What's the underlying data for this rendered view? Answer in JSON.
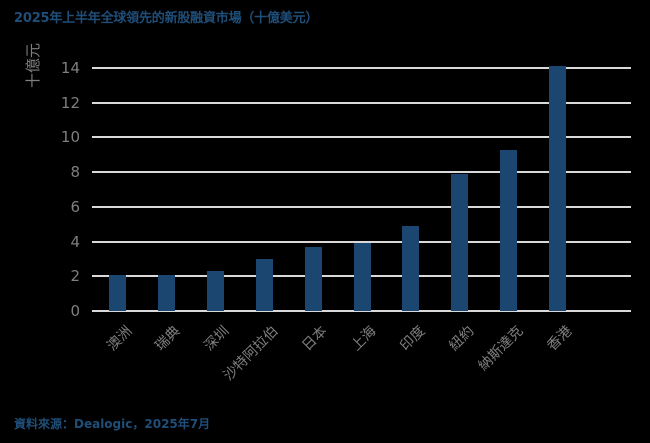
{
  "title": "2025年上半年全球領先的新股融資市場（十億美元）",
  "source": "資料來源：Dealogic，2025年7月",
  "colors": {
    "bar": "#1b4670",
    "title": "#1f4e79",
    "grid": "#d9d9d9",
    "axis_text": "#7f7f7f",
    "background": "#000000"
  },
  "chart_data": {
    "type": "bar",
    "title": "2025年上半年全球領先的新股融資市場（十億美元）",
    "xlabel": "",
    "ylabel": "十億元",
    "categories": [
      "澳洲",
      "瑞典",
      "深圳",
      "沙特阿拉伯",
      "日本",
      "上海",
      "印度",
      "紐約",
      "納斯達克",
      "香港"
    ],
    "values": [
      2.1,
      2.1,
      2.3,
      3.0,
      3.7,
      3.9,
      4.9,
      7.9,
      9.3,
      14.1
    ],
    "ylim": [
      0,
      14
    ],
    "yticks": [
      0,
      2,
      4,
      6,
      8,
      10,
      12,
      14
    ],
    "grid": true,
    "legend": null
  }
}
